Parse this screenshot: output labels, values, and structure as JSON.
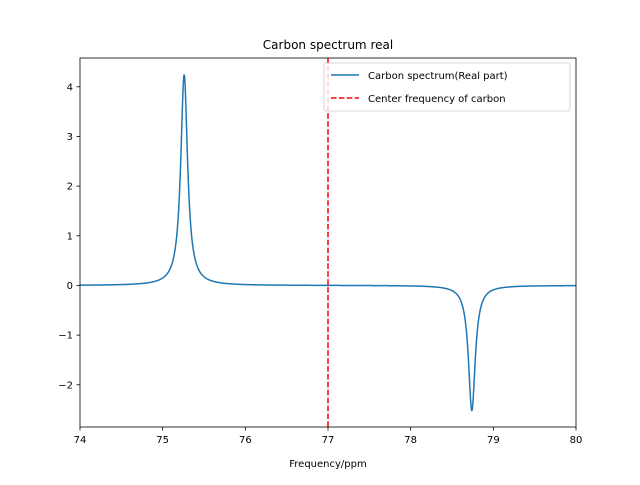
{
  "chart_data": {
    "type": "line",
    "title": "Carbon spectrum real",
    "xlabel": "Frequency/ppm",
    "ylabel": "",
    "xlim": [
      74,
      80
    ],
    "ylim": [
      -2.85,
      4.58
    ],
    "x_ticks": [
      74,
      75,
      76,
      77,
      78,
      79,
      80
    ],
    "y_ticks": [
      -2,
      -1,
      0,
      1,
      2,
      3,
      4
    ],
    "y_tick_labels": [
      "−2",
      "−1",
      "0",
      "1",
      "2",
      "3",
      "4"
    ],
    "grid": false,
    "legend_position": "top-right",
    "series": [
      {
        "name": "Carbon spectrum(Real part)",
        "color": "#1f77b4",
        "style": "solid",
        "model": "lorentzian-peaks",
        "peaks": [
          {
            "center": 75.26,
            "height": 4.24,
            "width": 0.05
          },
          {
            "center": 78.74,
            "height": -2.52,
            "width": 0.05
          }
        ]
      },
      {
        "name": "Center frequency of carbon",
        "color": "#ff0000",
        "style": "dashed",
        "model": "vertical-line",
        "x": 77.0
      }
    ]
  }
}
